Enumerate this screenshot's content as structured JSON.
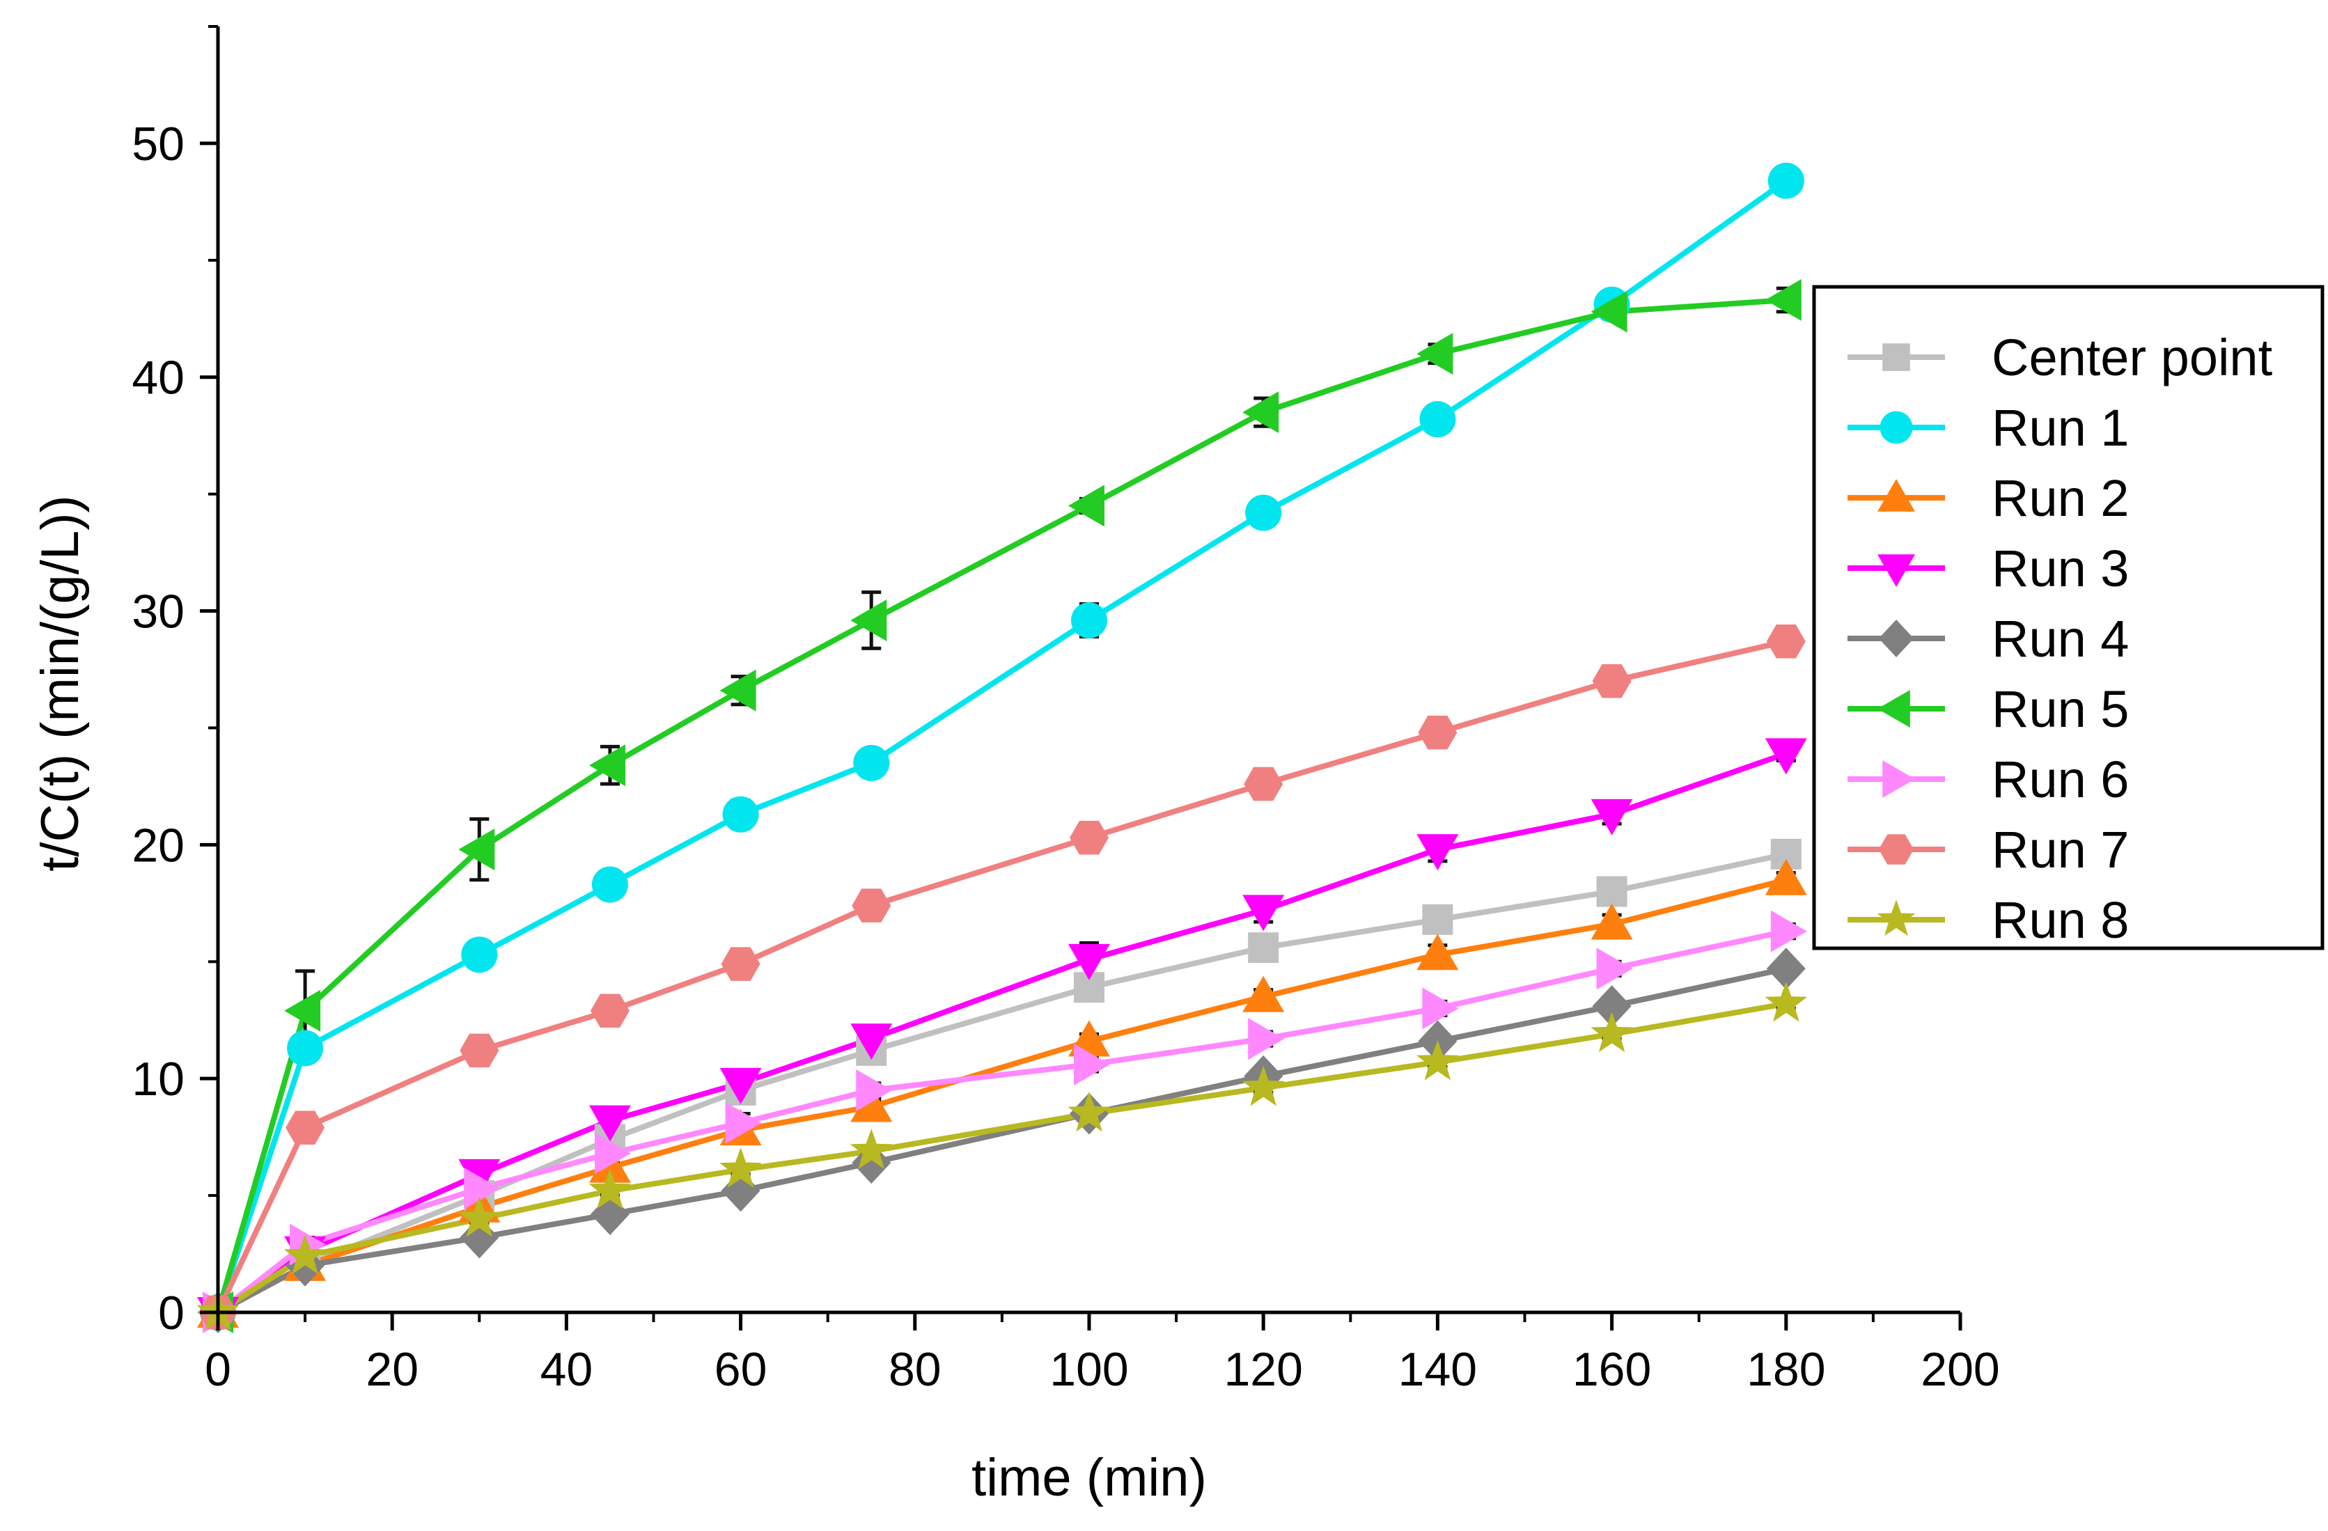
{
  "chart_data": {
    "type": "line",
    "title": "",
    "xlabel": "time (min)",
    "ylabel": "t/C(t) (min/(g/L))",
    "xlim": [
      0,
      200
    ],
    "ylim": [
      0,
      55
    ],
    "xticks": [
      0,
      20,
      40,
      60,
      80,
      100,
      120,
      140,
      160,
      180,
      200
    ],
    "yticks": [
      0,
      10,
      20,
      30,
      40,
      50
    ],
    "grid": false,
    "legend_position": "right",
    "x": [
      0,
      10,
      30,
      45,
      60,
      75,
      100,
      120,
      140,
      160,
      180
    ],
    "series": [
      {
        "name": "Center point",
        "marker": "square",
        "color": "#c0c0c0",
        "values": [
          0,
          2.0,
          5.0,
          7.4,
          9.5,
          11.2,
          13.9,
          15.6,
          16.8,
          18.0,
          19.6
        ],
        "errors": [
          0,
          0.3,
          0.4,
          0.4,
          0.4,
          0.3,
          0.4,
          0.3,
          0.3,
          0.3,
          0.3
        ]
      },
      {
        "name": "Run 1",
        "marker": "circle",
        "color": "#00e5ee",
        "values": [
          0,
          11.3,
          15.3,
          18.3,
          21.3,
          23.5,
          29.6,
          34.2,
          38.2,
          43.1,
          48.4
        ],
        "errors": [
          0,
          0.4,
          0.4,
          0.5,
          0.6,
          0.4,
          0.7,
          0.3,
          0.3,
          0.3,
          0.3
        ]
      },
      {
        "name": "Run 2",
        "marker": "triangle-up",
        "color": "#ff7f0e",
        "values": [
          0,
          2.0,
          4.5,
          6.2,
          7.8,
          8.8,
          11.6,
          13.5,
          15.3,
          16.6,
          18.5
        ],
        "errors": [
          0,
          0.3,
          0.3,
          0.4,
          0.4,
          0.3,
          0.3,
          0.3,
          0.4,
          0.4,
          0.3
        ]
      },
      {
        "name": "Run 3",
        "marker": "triangle-down",
        "color": "#ff00ff",
        "values": [
          0,
          2.6,
          5.9,
          8.2,
          9.8,
          11.7,
          15.1,
          17.2,
          19.8,
          21.3,
          23.9
        ],
        "errors": [
          0,
          0.3,
          0.3,
          0.5,
          0.4,
          0.5,
          0.7,
          0.5,
          0.5,
          0.4,
          0.3
        ]
      },
      {
        "name": "Run 4",
        "marker": "diamond",
        "color": "#808080",
        "values": [
          0,
          2.0,
          3.2,
          4.2,
          5.2,
          6.4,
          8.5,
          10.1,
          11.6,
          13.1,
          14.7
        ],
        "errors": [
          0,
          0.2,
          0.2,
          0.2,
          0.2,
          0.2,
          0.2,
          0.2,
          0.2,
          0.2,
          0.2
        ]
      },
      {
        "name": "Run 5",
        "marker": "triangle-left",
        "color": "#22cc22",
        "values": [
          0,
          12.9,
          19.8,
          23.4,
          26.6,
          29.6,
          34.5,
          38.5,
          41.0,
          42.8,
          43.3
        ],
        "errors": [
          0,
          1.7,
          1.3,
          0.8,
          0.6,
          1.2,
          0.3,
          0.6,
          0.4,
          0.3,
          0.5
        ]
      },
      {
        "name": "Run 6",
        "marker": "triangle-right",
        "color": "#ff88ff",
        "values": [
          0,
          2.9,
          5.3,
          6.8,
          8.1,
          9.5,
          10.6,
          11.7,
          13.0,
          14.7,
          16.3
        ],
        "errors": [
          0,
          0.3,
          0.3,
          0.4,
          0.4,
          0.3,
          0.3,
          0.3,
          0.3,
          0.3,
          0.3
        ]
      },
      {
        "name": "Run 7",
        "marker": "hexagon",
        "color": "#f08080",
        "values": [
          0,
          7.9,
          11.2,
          12.9,
          14.9,
          17.4,
          20.3,
          22.6,
          24.8,
          27.0,
          28.7
        ],
        "errors": [
          0,
          0.6,
          0.6,
          0.3,
          0.5,
          0.3,
          0.3,
          0.2,
          0.2,
          0.2,
          0.2
        ]
      },
      {
        "name": "Run 8",
        "marker": "star",
        "color": "#b8b820",
        "values": [
          0,
          2.4,
          4.0,
          5.2,
          6.1,
          6.9,
          8.5,
          9.6,
          10.7,
          11.9,
          13.2
        ],
        "errors": [
          0,
          0.2,
          0.2,
          0.2,
          0.2,
          0.2,
          0.2,
          0.2,
          0.2,
          0.2,
          0.2
        ]
      }
    ]
  }
}
